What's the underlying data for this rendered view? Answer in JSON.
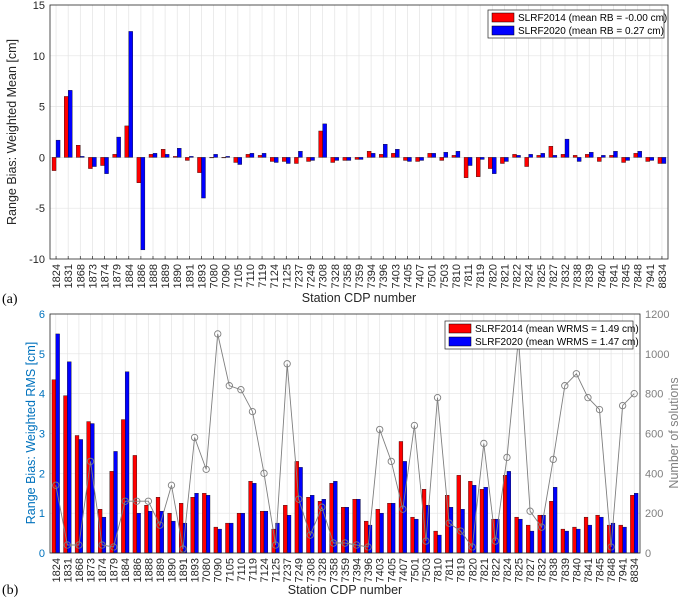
{
  "chart_data": [
    {
      "type": "bar",
      "panel_label": "(a)",
      "xlabel": "Station CDP number",
      "ylabel": "Range Bias: Weighted Mean [cm]",
      "ylim": [
        -10,
        15
      ],
      "yticks": [
        -10,
        -5,
        0,
        5,
        10,
        15
      ],
      "grid": true,
      "legend_position": "top-right",
      "categories": [
        "1824",
        "1831",
        "1868",
        "1873",
        "1874",
        "1879",
        "1884",
        "1886",
        "1888",
        "1889",
        "1890",
        "1891",
        "1893",
        "7080",
        "7090",
        "7105",
        "7110",
        "7119",
        "7124",
        "7125",
        "7237",
        "7249",
        "7308",
        "7328",
        "7358",
        "7359",
        "7394",
        "7396",
        "7403",
        "7405",
        "7407",
        "7501",
        "7503",
        "7810",
        "7811",
        "7819",
        "7820",
        "7821",
        "7822",
        "7824",
        "7825",
        "7827",
        "7832",
        "7838",
        "7839",
        "7840",
        "7841",
        "7845",
        "7848",
        "7941",
        "8834"
      ],
      "series": [
        {
          "name": "SLRF2014 (mean RB = -0.00 cm)",
          "color": "#ff0000",
          "values": [
            -1.3,
            6.0,
            1.2,
            -1.1,
            -0.8,
            0.3,
            3.1,
            -2.5,
            0.3,
            0.8,
            0.1,
            -0.3,
            -1.5,
            0.0,
            0.0,
            -0.5,
            0.3,
            0.2,
            -0.4,
            -0.4,
            -0.6,
            -0.4,
            2.6,
            -0.5,
            -0.3,
            -0.2,
            0.6,
            0.3,
            0.4,
            -0.3,
            -0.4,
            0.4,
            -0.3,
            0.2,
            -2.0,
            -1.9,
            -1.1,
            -0.6,
            0.3,
            -0.9,
            0.2,
            1.1,
            0.3,
            0.2,
            0.3,
            -0.4,
            0.2,
            -0.5,
            0.4,
            -0.4,
            -0.6
          ]
        },
        {
          "name": "SLRF2020 (mean RB = 0.27 cm)",
          "color": "#0000ff",
          "values": [
            1.7,
            6.6,
            0.1,
            -0.9,
            -1.6,
            2.0,
            12.4,
            -9.1,
            0.4,
            0.3,
            0.9,
            0.1,
            -4.0,
            0.3,
            0.1,
            -0.7,
            0.4,
            0.4,
            -0.5,
            -0.6,
            0.6,
            -0.3,
            3.3,
            -0.3,
            -0.3,
            -0.2,
            0.4,
            1.3,
            0.8,
            -0.4,
            -0.3,
            0.4,
            0.5,
            0.6,
            -0.8,
            -0.2,
            -1.6,
            -0.4,
            0.2,
            0.3,
            0.4,
            0.2,
            1.8,
            -0.4,
            0.5,
            0.2,
            0.6,
            -0.3,
            0.6,
            -0.3,
            -0.6
          ]
        }
      ]
    },
    {
      "type": "bar",
      "panel_label": "(b)",
      "xlabel": "Station CDP number",
      "ylabel": "Range Bias: Weighted RMS [cm]",
      "ylabel_right": "Number of solutions",
      "ylim": [
        0,
        6
      ],
      "yticks": [
        0,
        1,
        2,
        3,
        4,
        5,
        6
      ],
      "ylim_right": [
        0,
        1200
      ],
      "yticks_right": [
        0,
        200,
        400,
        600,
        800,
        1000,
        1200
      ],
      "grid": true,
      "legend_position": "top-right",
      "categories": [
        "1824",
        "1831",
        "1868",
        "1873",
        "1874",
        "1879",
        "1884",
        "1886",
        "1888",
        "1889",
        "1890",
        "1891",
        "1893",
        "7080",
        "7090",
        "7105",
        "7110",
        "7119",
        "7124",
        "7125",
        "7237",
        "7249",
        "7308",
        "7328",
        "7358",
        "7359",
        "7394",
        "7396",
        "7403",
        "7405",
        "7407",
        "7501",
        "7503",
        "7810",
        "7811",
        "7819",
        "7820",
        "7821",
        "7822",
        "7824",
        "7825",
        "7827",
        "7832",
        "7838",
        "7839",
        "7840",
        "7841",
        "7845",
        "7848",
        "7941",
        "8834"
      ],
      "series": [
        {
          "name": "SLRF2014 (mean WRMS = 1.49 cm)",
          "color": "#ff0000",
          "values": [
            4.35,
            3.95,
            2.95,
            3.3,
            1.1,
            2.05,
            3.35,
            2.45,
            1.2,
            1.4,
            1.0,
            1.25,
            1.4,
            1.5,
            0.65,
            0.75,
            1.0,
            1.8,
            1.05,
            0.6,
            1.2,
            2.3,
            1.4,
            1.3,
            1.75,
            1.15,
            1.35,
            0.8,
            1.1,
            1.25,
            2.8,
            0.9,
            1.6,
            0.55,
            1.45,
            1.95,
            1.8,
            1.6,
            0.85,
            1.95,
            0.9,
            0.7,
            0.95,
            1.3,
            0.6,
            0.65,
            0.9,
            0.95,
            0.7,
            0.7,
            1.45
          ]
        },
        {
          "name": "SLRF2020 (mean WRMS = 1.47 cm)",
          "color": "#0000ff",
          "values": [
            5.5,
            4.8,
            2.85,
            3.25,
            0.9,
            2.55,
            4.55,
            1.0,
            1.05,
            1.05,
            0.8,
            0.75,
            1.5,
            1.45,
            0.6,
            0.75,
            1.0,
            1.75,
            1.05,
            0.75,
            0.95,
            2.15,
            1.45,
            1.35,
            1.8,
            1.15,
            1.35,
            0.7,
            1.0,
            1.25,
            2.3,
            0.85,
            1.2,
            0.45,
            1.15,
            1.1,
            1.7,
            1.65,
            0.85,
            2.05,
            0.85,
            0.55,
            0.95,
            1.65,
            0.55,
            0.6,
            0.7,
            0.9,
            0.75,
            0.65,
            1.5
          ]
        },
        {
          "name": "Number of solutions",
          "axis": "right",
          "color": "#7f7f7f",
          "kind": "line",
          "values": [
            340,
            40,
            40,
            460,
            40,
            30,
            260,
            260,
            260,
            140,
            340,
            20,
            580,
            420,
            1100,
            840,
            820,
            710,
            400,
            40,
            950,
            270,
            90,
            230,
            50,
            50,
            40,
            30,
            620,
            460,
            220,
            640,
            60,
            780,
            150,
            110,
            30,
            550,
            60,
            480,
            1080,
            210,
            130,
            470,
            840,
            900,
            780,
            720,
            30,
            740,
            800
          ]
        }
      ]
    }
  ]
}
